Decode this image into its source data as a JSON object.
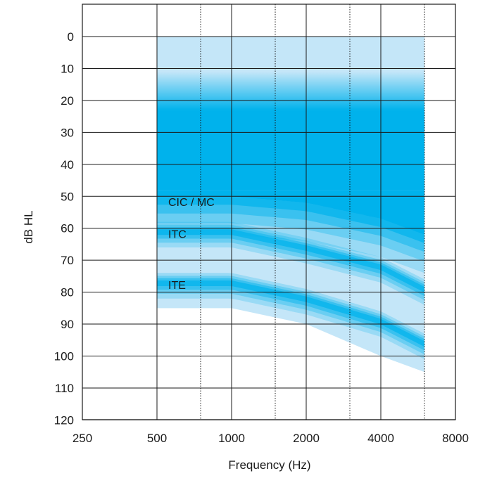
{
  "chart_data": {
    "type": "area",
    "title": "",
    "xlabel": "Frequency (Hz)",
    "ylabel": "dB HL",
    "x_scale": "log2",
    "y_inverted": true,
    "xlim": [
      250,
      8000
    ],
    "ylim": [
      0,
      120
    ],
    "x_ticks": [
      250,
      500,
      1000,
      2000,
      4000,
      8000
    ],
    "x_tick_labels": [
      "250",
      "500",
      "1000",
      "2000",
      "4000",
      "8000"
    ],
    "x_minor_ticks": [
      750,
      1500,
      3000,
      6000
    ],
    "y_ticks": [
      0,
      10,
      20,
      30,
      40,
      50,
      60,
      70,
      80,
      90,
      100,
      110,
      120
    ],
    "y_tick_labels": [
      "0",
      "10",
      "20",
      "30",
      "40",
      "50",
      "60",
      "70",
      "80",
      "90",
      "100",
      "110",
      "120"
    ],
    "grid": true,
    "colors": {
      "light": "#c4e6f8",
      "dark": "#00b2ec",
      "grid": "#1a1a1a"
    },
    "background_region": {
      "x": [
        500,
        6000
      ],
      "top": 0,
      "bottom": [
        [
          500,
          85
        ],
        [
          1000,
          85
        ],
        [
          2000,
          90
        ],
        [
          4000,
          100
        ],
        [
          6000,
          105
        ]
      ]
    },
    "solid_core": {
      "x": [
        500,
        6000
      ],
      "top": 23,
      "bottom": 48
    },
    "series": [
      {
        "name": "CIC / MC",
        "label_at": [
          500,
          53
        ],
        "center": [
          [
            500,
            50
          ],
          [
            1000,
            50
          ],
          [
            2000,
            52
          ],
          [
            4000,
            57
          ],
          [
            6000,
            62
          ]
        ],
        "top_fade": 11,
        "bottom_fade_from": 62
      },
      {
        "name": "ITC",
        "label_at": [
          500,
          63
        ],
        "center": [
          [
            500,
            61
          ],
          [
            1000,
            61
          ],
          [
            2000,
            66
          ],
          [
            4000,
            72
          ],
          [
            6000,
            79
          ]
        ]
      },
      {
        "name": "ITE",
        "label_at": [
          500,
          79
        ],
        "center": [
          [
            500,
            77
          ],
          [
            1000,
            77
          ],
          [
            2000,
            82
          ],
          [
            4000,
            89
          ],
          [
            6000,
            96
          ]
        ]
      }
    ]
  }
}
